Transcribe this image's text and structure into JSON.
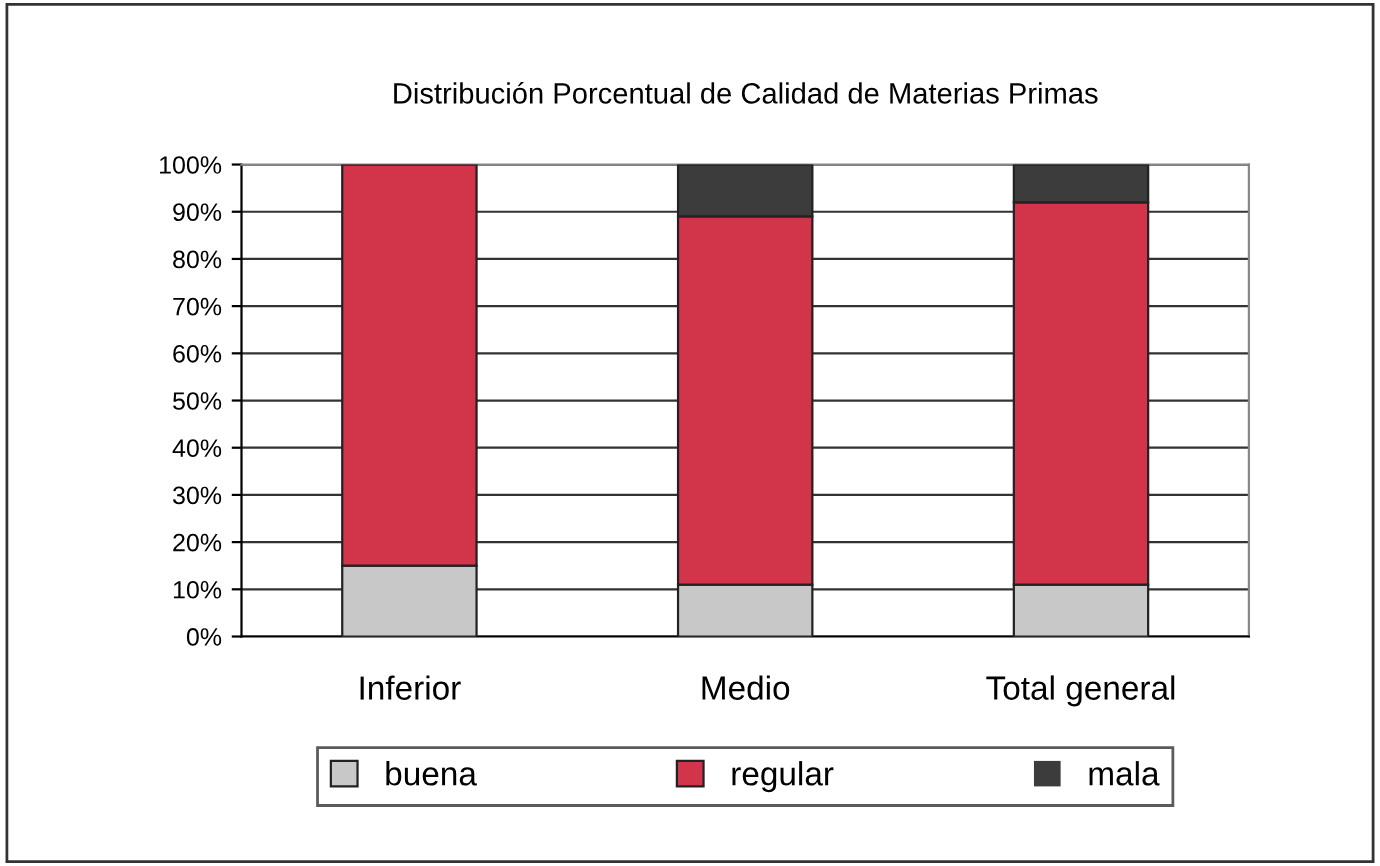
{
  "chart_data": {
    "type": "bar",
    "title": "Distribución Porcentual de Calidad de Materias Primas",
    "stacked": true,
    "categories": [
      "Inferior",
      "Medio",
      "Total general"
    ],
    "series": [
      {
        "name": "buena",
        "color": "#c8c8c8",
        "values": [
          15,
          11,
          11
        ]
      },
      {
        "name": "regular",
        "color": "#d2344a",
        "values": [
          85,
          78,
          81
        ]
      },
      {
        "name": "mala",
        "color": "#3c3c3c",
        "values": [
          0,
          11,
          8
        ]
      }
    ],
    "ylim": [
      0,
      100
    ],
    "yticks": [
      {
        "value": 0,
        "label": "0%"
      },
      {
        "value": 10,
        "label": "10%"
      },
      {
        "value": 20,
        "label": "20%"
      },
      {
        "value": 30,
        "label": "30%"
      },
      {
        "value": 40,
        "label": "40%"
      },
      {
        "value": 50,
        "label": "50%"
      },
      {
        "value": 60,
        "label": "60%"
      },
      {
        "value": 70,
        "label": "70%"
      },
      {
        "value": 80,
        "label": "80%"
      },
      {
        "value": 90,
        "label": "90%"
      },
      {
        "value": 100,
        "label": "100%"
      }
    ],
    "grid": "y",
    "legend": "bottom"
  }
}
